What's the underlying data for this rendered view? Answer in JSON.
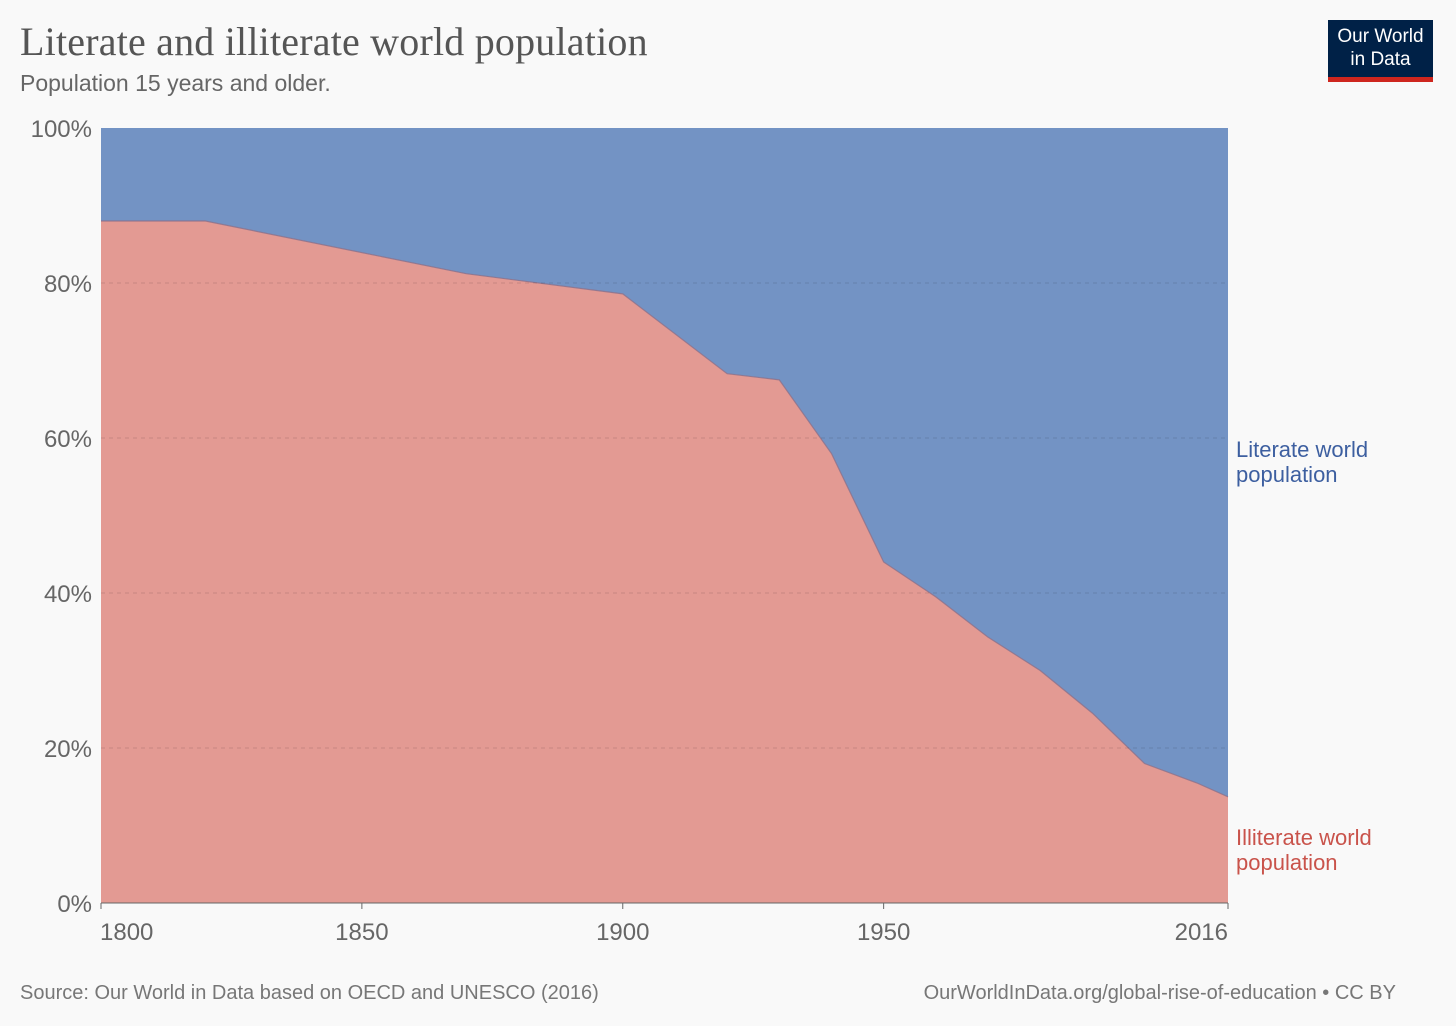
{
  "header": {
    "title": "Literate and illiterate world population",
    "subtitle": "Population 15 years and older."
  },
  "logo": {
    "line1": "Our World",
    "line2": "in Data"
  },
  "footer": {
    "source": "Source: Our World in Data based on OECD and UNESCO (2016)",
    "link": "OurWorldInData.org/global-rise-of-education • CC BY"
  },
  "colors": {
    "background": "#f9f9f9",
    "literate": "#7393c4",
    "illiterate": "#e39a93",
    "literate_label": "#3d5fa0",
    "illiterate_label": "#c9534b",
    "logo_bg": "#002147",
    "logo_accent": "#ce261e"
  },
  "chart_data": {
    "type": "area",
    "title": "Literate and illiterate world population",
    "subtitle": "Population 15 years and older.",
    "stacked": true,
    "normalized": true,
    "x": [
      1800,
      1820,
      1870,
      1900,
      1920,
      1930,
      1940,
      1950,
      1960,
      1970,
      1980,
      1990,
      2000,
      2010,
      2016
    ],
    "series": [
      {
        "name": "Illiterate world population",
        "values": [
          88,
          88,
          81.2,
          78.6,
          68.3,
          67.5,
          58,
          44,
          39.5,
          34.3,
          30,
          24.5,
          18,
          15.5,
          13.7
        ]
      },
      {
        "name": "Literate world population",
        "values": [
          12,
          12,
          18.8,
          21.4,
          31.7,
          32.5,
          42,
          56,
          60.5,
          65.7,
          70,
          75.5,
          82,
          84.5,
          86.3
        ]
      }
    ],
    "series_labels": [
      [
        "Literate world",
        "population"
      ],
      [
        "Illiterate world",
        "population"
      ]
    ],
    "xlim": [
      1800,
      2016
    ],
    "ylim": [
      0,
      100
    ],
    "x_ticks": [
      "1800",
      "1850",
      "1900",
      "1950",
      "2016"
    ],
    "y_ticks": [
      "0%",
      "20%",
      "40%",
      "60%",
      "80%",
      "100%"
    ],
    "grid": true,
    "legend": "right"
  }
}
